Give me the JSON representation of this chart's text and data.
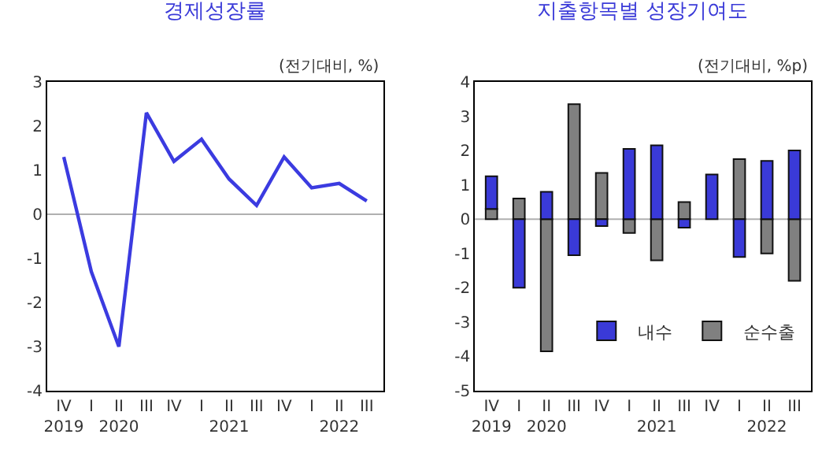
{
  "chart_data": [
    {
      "type": "line",
      "title": "경제성장률",
      "categories": [
        "IV\n2019",
        "I",
        "II\n2020",
        "III",
        "IV",
        "I",
        "II\n2021",
        "III",
        "IV",
        "I",
        "II\n2022",
        "III"
      ],
      "series": [
        {
          "color": "#3b3be0",
          "values": [
            1.3,
            -1.3,
            -3.0,
            2.3,
            1.2,
            1.7,
            0.8,
            0.2,
            1.3,
            0.6,
            0.7,
            0.3
          ]
        }
      ],
      "ylim": [
        -4,
        3
      ],
      "yticks": [
        -4,
        -3,
        -2,
        -1,
        0,
        1,
        2,
        3
      ],
      "annotations": [
        "(전기대비, %)"
      ],
      "ref_lines": [
        {
          "axis": "y",
          "value": 0,
          "color": "#b0b0b0"
        }
      ],
      "grid": false,
      "legend": false,
      "marker": "none",
      "line_style": "solid"
    },
    {
      "type": "bar",
      "title": "지출항목별 성장기여도",
      "categories": [
        "IV\n2019",
        "I",
        "II\n2020",
        "III",
        "IV",
        "I",
        "II\n2021",
        "III",
        "IV",
        "I",
        "II\n2022",
        "III"
      ],
      "series": [
        {
          "name": "순수출",
          "color": "#808080",
          "values": [
            0.3,
            0.6,
            -3.85,
            3.35,
            1.35,
            -0.4,
            -1.2,
            0.5,
            null,
            1.75,
            -1.0,
            -1.8
          ]
        },
        {
          "name": "내수",
          "color": "#3a3ad8",
          "values": [
            0.95,
            -2.0,
            0.8,
            -1.05,
            -0.2,
            2.05,
            2.15,
            -0.25,
            1.3,
            -1.1,
            1.7,
            2.0
          ]
        }
      ],
      "stacked": true,
      "ref_lines": [
        {
          "axis": "y",
          "value": 0,
          "color": "#b0b0b0"
        }
      ],
      "ylim": [
        -5,
        4
      ],
      "yticks": [
        -5,
        -4,
        -3,
        -2,
        -1,
        0,
        1,
        2,
        3,
        4
      ],
      "annotations": [
        "(전기대비, %p)"
      ],
      "grid": false,
      "legend": "bottom right"
    }
  ]
}
